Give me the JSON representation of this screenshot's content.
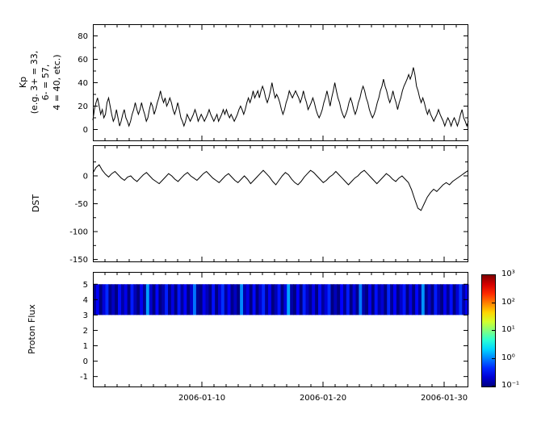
{
  "figure": {
    "background": "#ffffff"
  },
  "x_axis": {
    "range_days": [
      0,
      31
    ],
    "major_tick_days": [
      9,
      19,
      29
    ],
    "tick_labels": [
      "2006-01-10",
      "2006-01-20",
      "2006-01-30"
    ]
  },
  "colorbar": {
    "scale": "log",
    "range": [
      0.1,
      1000
    ],
    "tick_labels": [
      "10³",
      "10²",
      "10¹",
      "10⁰",
      "10⁻¹"
    ]
  },
  "chart_data": [
    {
      "type": "line",
      "name": "kp-index",
      "title": "",
      "xlabel": "",
      "ylabel": "Kp\n(e.g. 3+ = 33,\n6- = 57,\n4 = 40, etc.)",
      "line_color": "#000000",
      "ylim": [
        -10,
        90
      ],
      "yticks": [
        0,
        20,
        40,
        60,
        80
      ],
      "yticks_minor": [
        10,
        30,
        50,
        70
      ],
      "x_span_days": 31,
      "values": [
        8,
        17,
        23,
        27,
        20,
        13,
        17,
        10,
        13,
        23,
        27,
        20,
        13,
        7,
        10,
        17,
        10,
        3,
        7,
        13,
        17,
        10,
        7,
        3,
        7,
        13,
        17,
        23,
        17,
        13,
        17,
        23,
        17,
        13,
        7,
        10,
        17,
        23,
        20,
        13,
        17,
        23,
        27,
        33,
        27,
        23,
        27,
        20,
        23,
        27,
        23,
        17,
        13,
        17,
        23,
        17,
        10,
        7,
        3,
        7,
        13,
        10,
        7,
        10,
        13,
        17,
        13,
        7,
        10,
        13,
        10,
        7,
        10,
        13,
        17,
        13,
        10,
        7,
        10,
        13,
        7,
        10,
        13,
        17,
        13,
        17,
        13,
        10,
        13,
        10,
        7,
        10,
        13,
        17,
        20,
        17,
        13,
        17,
        23,
        27,
        23,
        27,
        33,
        27,
        30,
        33,
        27,
        33,
        37,
        33,
        27,
        23,
        27,
        33,
        40,
        33,
        27,
        30,
        27,
        23,
        17,
        13,
        17,
        23,
        27,
        33,
        30,
        27,
        30,
        33,
        30,
        27,
        23,
        27,
        33,
        27,
        23,
        17,
        20,
        23,
        27,
        23,
        17,
        13,
        10,
        13,
        17,
        23,
        27,
        33,
        27,
        20,
        27,
        33,
        40,
        33,
        27,
        23,
        17,
        13,
        10,
        13,
        17,
        23,
        27,
        23,
        17,
        13,
        17,
        23,
        27,
        33,
        37,
        33,
        27,
        23,
        17,
        13,
        10,
        13,
        17,
        23,
        27,
        33,
        37,
        43,
        37,
        33,
        27,
        23,
        27,
        33,
        27,
        23,
        17,
        23,
        27,
        33,
        37,
        40,
        43,
        47,
        43,
        47,
        53,
        47,
        37,
        33,
        27,
        23,
        27,
        23,
        17,
        13,
        17,
        13,
        10,
        7,
        10,
        13,
        17,
        13,
        10,
        7,
        3,
        7,
        10,
        7,
        3,
        7,
        10,
        7,
        3,
        7,
        13,
        17,
        10,
        7,
        3,
        7
      ]
    },
    {
      "type": "line",
      "name": "dst-index",
      "title": "",
      "xlabel": "",
      "ylabel": "DST",
      "line_color": "#000000",
      "ylim": [
        -155,
        55
      ],
      "yticks": [
        0,
        -50,
        -100,
        -150
      ],
      "yticks_minor": [
        25,
        -25,
        -75,
        -125
      ],
      "x_span_days": 31,
      "values": [
        5,
        15,
        20,
        10,
        3,
        -2,
        4,
        8,
        2,
        -4,
        -8,
        -2,
        0,
        -6,
        -10,
        -4,
        2,
        6,
        0,
        -6,
        -10,
        -14,
        -8,
        -2,
        4,
        0,
        -6,
        -10,
        -4,
        2,
        6,
        0,
        -4,
        -8,
        -2,
        4,
        8,
        2,
        -4,
        -8,
        -12,
        -6,
        0,
        4,
        -2,
        -8,
        -12,
        -6,
        0,
        -6,
        -14,
        -8,
        -2,
        4,
        10,
        4,
        -2,
        -10,
        -16,
        -8,
        0,
        6,
        2,
        -6,
        -12,
        -16,
        -10,
        -2,
        4,
        10,
        6,
        0,
        -6,
        -12,
        -8,
        -2,
        2,
        8,
        2,
        -4,
        -10,
        -16,
        -10,
        -4,
        0,
        6,
        10,
        4,
        -2,
        -8,
        -14,
        -8,
        -2,
        4,
        0,
        -6,
        -10,
        -4,
        0,
        -6,
        -12,
        -25,
        -42,
        -58,
        -62,
        -50,
        -38,
        -30,
        -24,
        -28,
        -22,
        -16,
        -12,
        -16,
        -10,
        -6,
        -2,
        2,
        6,
        10
      ]
    },
    {
      "type": "heatmap",
      "name": "proton-flux",
      "title": "",
      "xlabel": "",
      "ylabel": "Proton Flux",
      "ylim": [
        -1.7,
        5.8
      ],
      "yticks": [
        -1,
        0,
        1,
        2,
        3,
        4,
        5
      ],
      "yticks_minor": [],
      "band_y": [
        3,
        5
      ],
      "scale": "log",
      "clim": [
        0.1,
        1000
      ],
      "x_span_days": 31,
      "values": [
        0.12,
        0.3,
        0.09,
        0.22,
        0.45,
        0.11,
        0.18,
        0.08,
        0.35,
        0.14,
        0.26,
        0.1,
        0.4,
        0.16,
        0.09,
        0.28,
        0.12,
        1.3,
        0.2,
        0.1,
        0.33,
        0.08,
        0.15,
        0.42,
        0.11,
        0.24,
        0.09,
        0.38,
        0.13,
        0.3,
        0.1,
        0.2,
        0.9,
        0.12,
        0.08,
        0.27,
        0.16,
        0.1,
        0.36,
        0.09,
        0.22,
        0.48,
        0.13,
        0.3,
        0.11,
        0.18,
        0.08,
        1.1,
        0.15,
        0.25,
        0.1,
        0.34,
        0.09,
        0.2,
        0.44,
        0.12,
        0.28,
        0.1,
        0.16,
        0.38,
        0.09,
        0.23,
        1.4,
        0.14,
        0.1,
        0.3,
        0.08,
        0.42,
        0.18,
        0.11,
        0.26,
        0.09,
        0.35,
        0.13,
        0.22,
        0.46,
        0.1,
        0.17,
        0.08,
        0.32,
        0.12,
        0.4,
        0.09,
        0.24,
        0.11,
        0.95,
        0.15,
        0.1,
        0.29,
        0.08,
        0.36,
        0.14,
        0.21,
        0.1,
        0.44,
        0.12,
        0.3,
        0.09,
        0.19,
        0.38,
        0.1,
        0.25,
        0.08,
        0.33,
        0.13,
        1.2,
        0.11,
        0.2,
        0.09,
        0.4,
        0.16,
        0.1,
        0.28,
        0.12,
        0.36,
        0.08,
        0.22,
        0.5,
        0.14,
        0.3
      ]
    }
  ]
}
